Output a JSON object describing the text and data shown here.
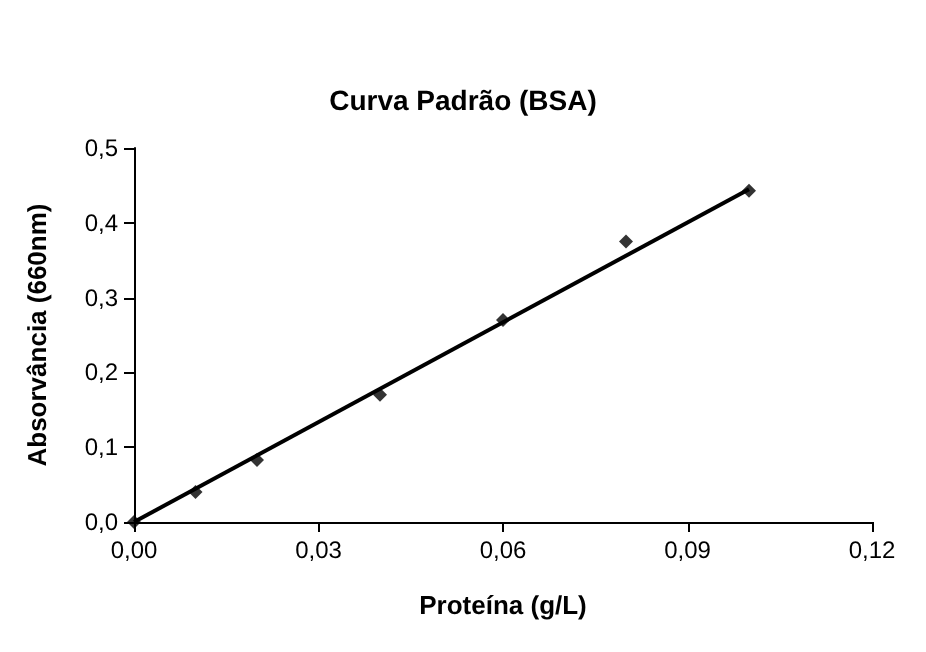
{
  "chart_data": {
    "type": "scatter",
    "title": "Curva Padrão (BSA)",
    "xlabel": "Proteína (g/L)",
    "ylabel": "Absorvância (660nm)",
    "xlim": [
      0,
      0.12
    ],
    "xticks": [
      {
        "value": 0,
        "label": "0,00"
      },
      {
        "value": 0.03,
        "label": "0,03"
      },
      {
        "value": 0.06,
        "label": "0,06"
      },
      {
        "value": 0.09,
        "label": "0,09"
      },
      {
        "value": 0.12,
        "label": "0,12"
      }
    ],
    "ylim": [
      0,
      0.5
    ],
    "yticks": [
      {
        "value": 0,
        "label": "0,0"
      },
      {
        "value": 0.1,
        "label": "0,1"
      },
      {
        "value": 0.2,
        "label": "0,2"
      },
      {
        "value": 0.3,
        "label": "0,3"
      },
      {
        "value": 0.4,
        "label": "0,4"
      },
      {
        "value": 0.5,
        "label": "0,5"
      }
    ],
    "grid": false,
    "series": [
      {
        "marker": "diamond",
        "color": "#000000",
        "x": [
          0,
          0.01,
          0.02,
          0.04,
          0.06,
          0.08,
          0.1
        ],
        "values": [
          0,
          0.04,
          0.083,
          0.17,
          0.27,
          0.375,
          0.443
        ]
      },
      {
        "type": "line",
        "marker": "none",
        "line_style": "solid",
        "color": "#000000",
        "x": [
          0,
          0.1
        ],
        "values": [
          0,
          0.445
        ]
      }
    ]
  }
}
